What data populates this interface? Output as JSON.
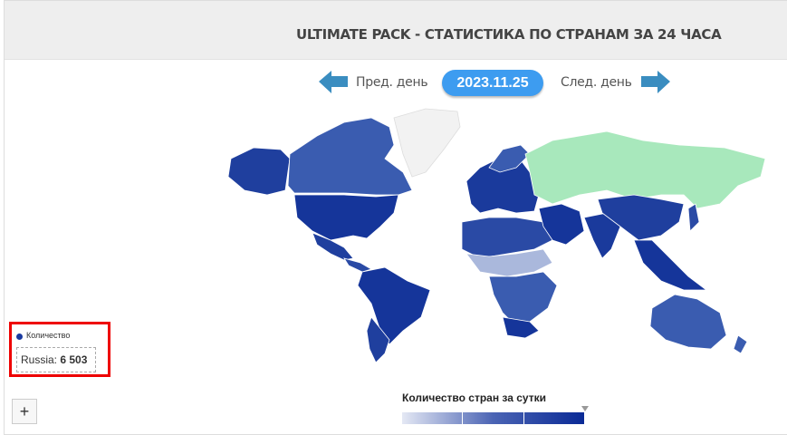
{
  "header": {
    "title": "ULTIMATE PACK - СТАТИСТИКА ПО СТРАНАМ ЗА 24 ЧАСА"
  },
  "nav": {
    "prev_label": "Пред. день",
    "next_label": "След. день",
    "date": "2023.11.25"
  },
  "legend": {
    "series": "Количество",
    "tooltip_country": "Russia:",
    "tooltip_value": "6 503"
  },
  "zoom": {
    "plus": "+"
  },
  "color_scale": {
    "title": "Количество стран за сутки"
  },
  "colors": {
    "dark": "#1a3a9c",
    "medium": "#3a5cb0",
    "light": "#aab8dc",
    "highlight": "#a8e8bc",
    "nodata": "#f2f2f2",
    "accent": "#3d9cf0"
  }
}
